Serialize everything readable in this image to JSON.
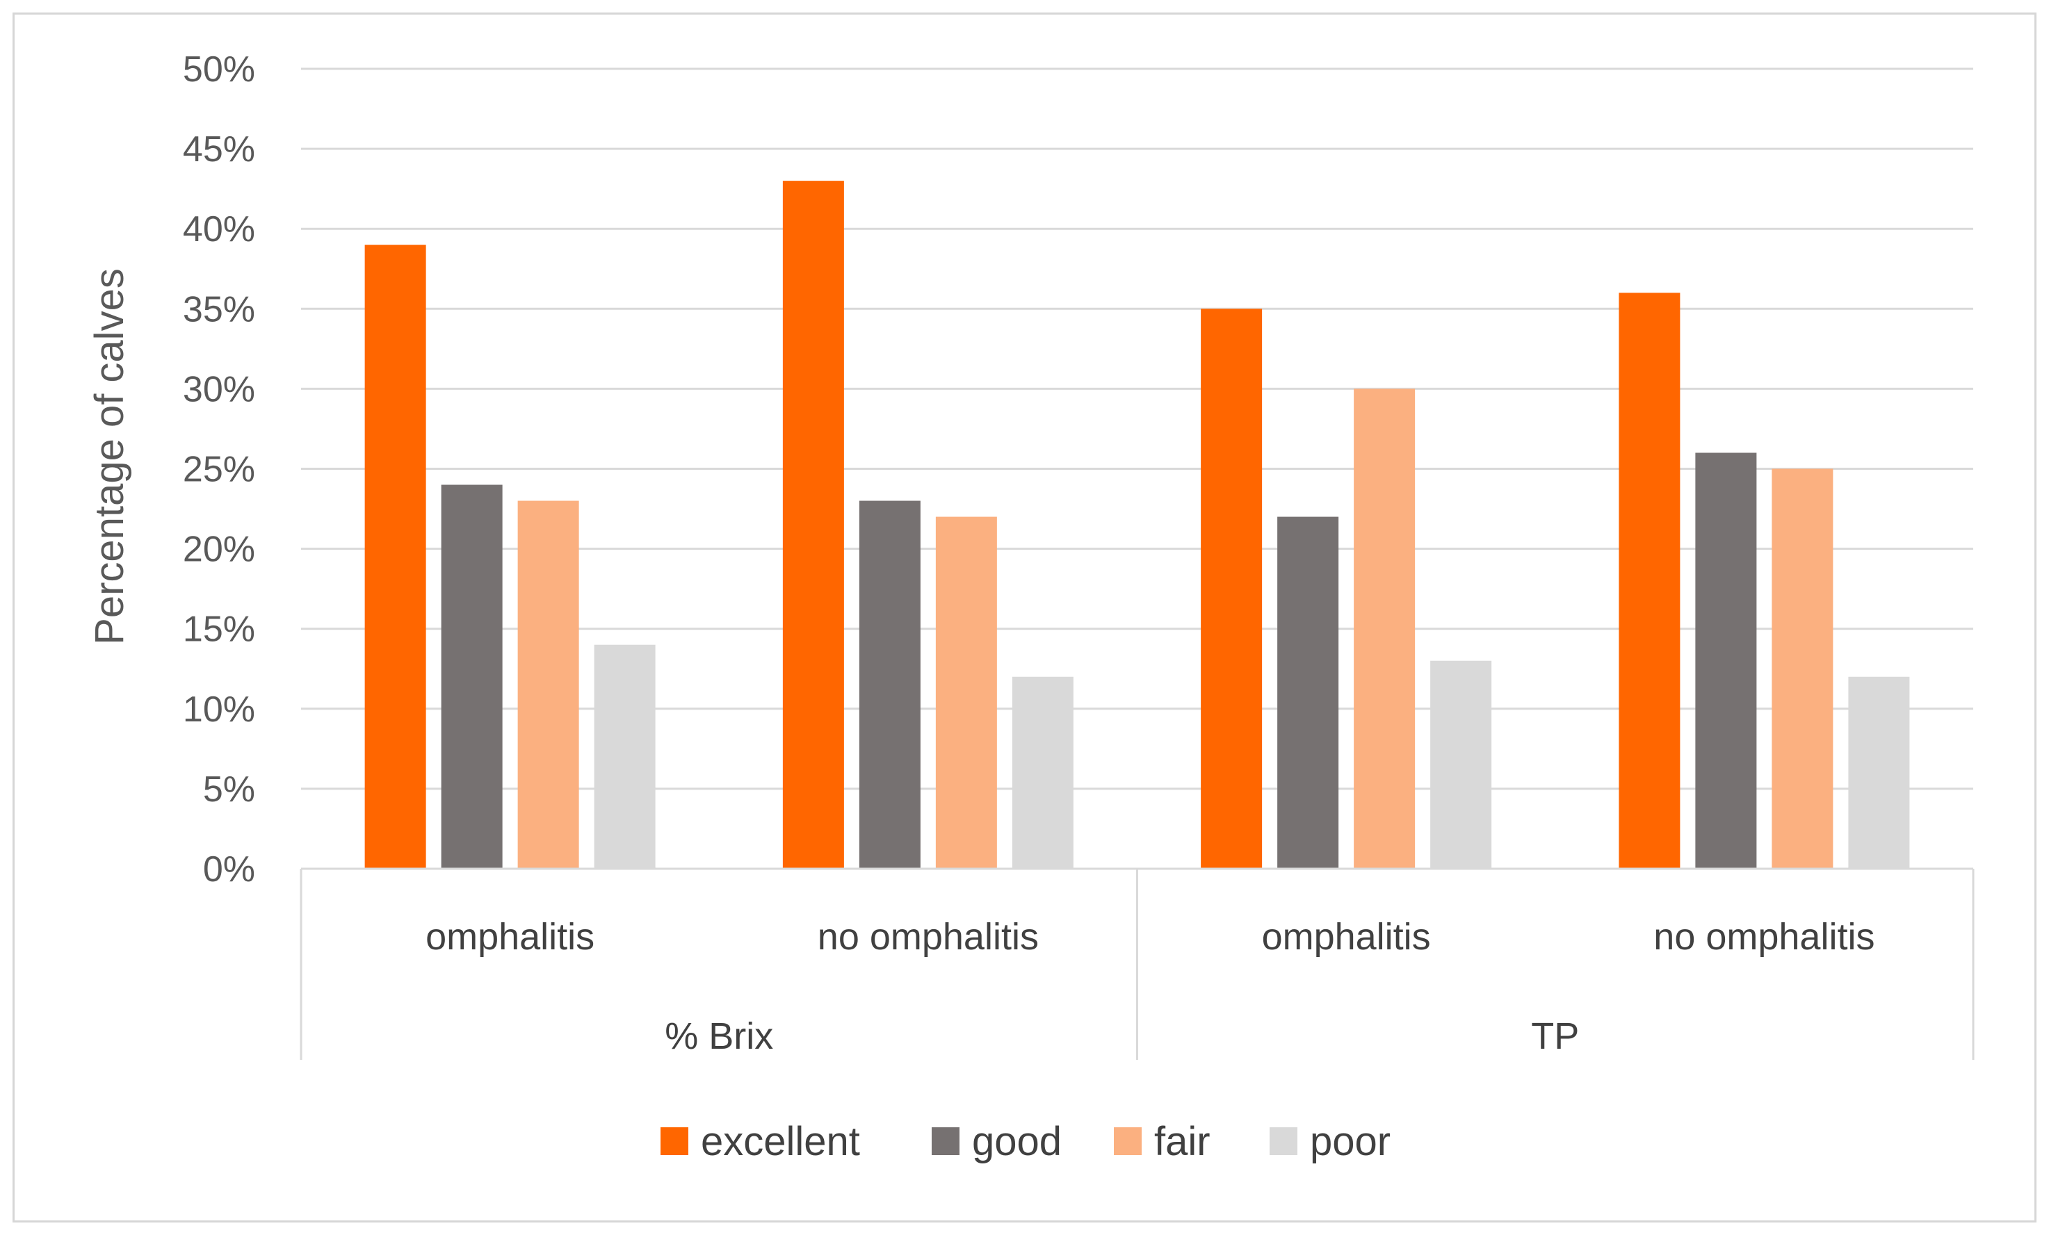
{
  "chart_data": {
    "type": "bar",
    "title": "",
    "xlabel": "",
    "ylabel": "Percentage of calves",
    "ylim": [
      0,
      50
    ],
    "yticks": [
      "0%",
      "5%",
      "10%",
      "15%",
      "20%",
      "25%",
      "30%",
      "35%",
      "40%",
      "45%",
      "50%"
    ],
    "grid": true,
    "legend_position": "bottom",
    "groups": [
      "% Brix",
      "TP"
    ],
    "categories": [
      "omphalitis",
      "no omphalitis",
      "omphalitis",
      "no omphalitis"
    ],
    "series": [
      {
        "name": "excellent",
        "color": "#ff6600",
        "values": [
          39,
          43,
          35,
          36
        ]
      },
      {
        "name": "good",
        "color": "#767171",
        "values": [
          24,
          23,
          22,
          26
        ]
      },
      {
        "name": "fair",
        "color": "#fbb080",
        "values": [
          23,
          22,
          30,
          25
        ]
      },
      {
        "name": "poor",
        "color": "#d9d9d9",
        "values": [
          14,
          12,
          13,
          12
        ]
      }
    ]
  }
}
